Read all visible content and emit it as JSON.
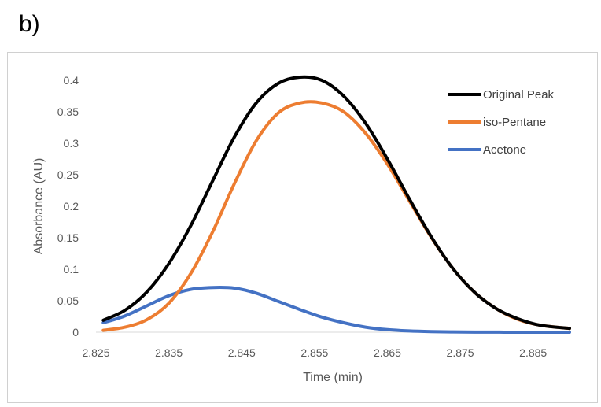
{
  "panel_label": "b)",
  "chart_data": {
    "type": "line",
    "title": "",
    "xlabel": "Time (min)",
    "ylabel": "Absorbance (AU)",
    "xlim": [
      2.825,
      2.89
    ],
    "ylim": [
      0,
      0.4
    ],
    "x_ticks": [
      "2.825",
      "2.835",
      "2.845",
      "2.855",
      "2.865",
      "2.875",
      "2.885"
    ],
    "y_ticks": [
      "0",
      "0.05",
      "0.1",
      "0.15",
      "0.2",
      "0.25",
      "0.3",
      "0.35",
      "0.4"
    ],
    "grid": false,
    "legend_position": "top-right",
    "x": [
      2.826,
      2.829,
      2.832,
      2.835,
      2.838,
      2.841,
      2.844,
      2.847,
      2.85,
      2.853,
      2.856,
      2.859,
      2.862,
      2.865,
      2.868,
      2.871,
      2.874,
      2.877,
      2.88,
      2.883,
      2.886,
      2.89
    ],
    "series": [
      {
        "name": "Original Peak",
        "color": "#000000",
        "values": [
          0.019,
          0.035,
          0.064,
          0.109,
          0.169,
          0.24,
          0.31,
          0.364,
          0.395,
          0.405,
          0.4,
          0.375,
          0.332,
          0.275,
          0.212,
          0.152,
          0.101,
          0.063,
          0.037,
          0.021,
          0.011,
          0.006
        ]
      },
      {
        "name": "iso-Pentane",
        "color": "#ED7D31",
        "values": [
          0.003,
          0.008,
          0.02,
          0.046,
          0.093,
          0.159,
          0.236,
          0.304,
          0.348,
          0.364,
          0.364,
          0.35,
          0.316,
          0.267,
          0.209,
          0.151,
          0.101,
          0.063,
          0.037,
          0.02,
          0.011,
          0.006
        ]
      },
      {
        "name": "Acetone",
        "color": "#4472C4",
        "values": [
          0.015,
          0.026,
          0.042,
          0.058,
          0.068,
          0.071,
          0.07,
          0.062,
          0.049,
          0.036,
          0.024,
          0.015,
          0.008,
          0.004,
          0.002,
          0.001,
          0.0005,
          0.0002,
          0.0001,
          0.0,
          0.0,
          0.0
        ]
      }
    ]
  }
}
